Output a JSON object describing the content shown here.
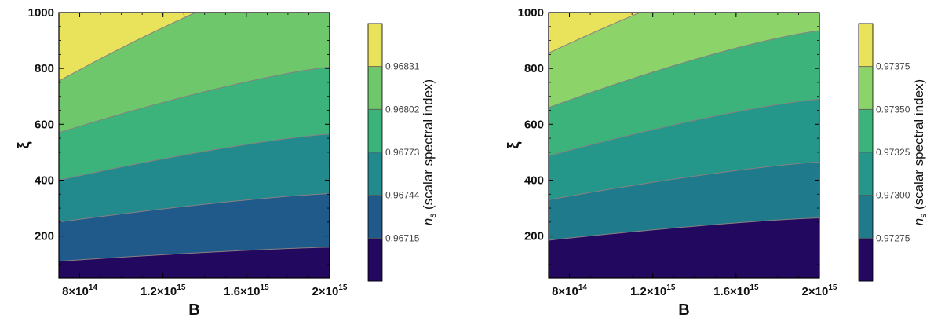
{
  "chart_data": [
    {
      "type": "contour",
      "xlabel": "B",
      "ylabel": "ξ",
      "x_ticks": [
        {
          "value": 800000000000000.0,
          "base": "8",
          "exp": "14"
        },
        {
          "value": 1200000000000000.0,
          "base": "1.2",
          "exp": "15"
        },
        {
          "value": 1600000000000000.0,
          "base": "1.6",
          "exp": "15"
        },
        {
          "value": 2000000000000000.0,
          "base": "2",
          "exp": "15"
        }
      ],
      "y_ticks": [
        "200",
        "400",
        "600",
        "800",
        "1000"
      ],
      "xlim": [
        700000000000000.0,
        2000000000000000.0
      ],
      "ylim": [
        50,
        1000
      ],
      "colorbar": {
        "title_symbol": "n",
        "title_sub": "s",
        "title_rest": " (scalar spectral index)",
        "levels": [
          "0.96715",
          "0.96744",
          "0.96773",
          "0.96802",
          "0.96831"
        ],
        "colors": [
          "#22085e",
          "#1f5a8a",
          "#22898c",
          "#3bb37b",
          "#6ec76a",
          "#e8e35a"
        ]
      },
      "contour_lines": [
        {
          "level": "0.96715",
          "y_at_xmin": 110,
          "y_at_xmax": 160
        },
        {
          "level": "0.96744",
          "y_at_xmin": 250,
          "y_at_xmax": 352
        },
        {
          "level": "0.96773",
          "y_at_xmin": 400,
          "y_at_xmax": 565
        },
        {
          "level": "0.96802",
          "y_at_xmin": 570,
          "y_at_xmax": 805
        },
        {
          "level": "0.96831",
          "y_at_xmin": 755,
          "y_at_xmax": 1170
        }
      ]
    },
    {
      "type": "contour",
      "xlabel": "B",
      "ylabel": "ξ",
      "x_ticks": [
        {
          "value": 800000000000000.0,
          "base": "8",
          "exp": "14"
        },
        {
          "value": 1200000000000000.0,
          "base": "1.2",
          "exp": "15"
        },
        {
          "value": 1600000000000000.0,
          "base": "1.6",
          "exp": "15"
        },
        {
          "value": 2000000000000000.0,
          "base": "2",
          "exp": "15"
        }
      ],
      "y_ticks": [
        "200",
        "400",
        "600",
        "800",
        "1000"
      ],
      "xlim": [
        700000000000000.0,
        2000000000000000.0
      ],
      "ylim": [
        50,
        1000
      ],
      "colorbar": {
        "title_symbol": "n",
        "title_sub": "s",
        "title_rest": " (scalar spectral index)",
        "levels": [
          "0.97275",
          "0.97300",
          "0.97325",
          "0.97350",
          "0.97375"
        ],
        "colors": [
          "#22085e",
          "#1f7a8c",
          "#25968a",
          "#3bb37b",
          "#8cd46a",
          "#e8e35a"
        ]
      },
      "contour_lines": [
        {
          "level": "0.97275",
          "y_at_xmin": 185,
          "y_at_xmax": 265
        },
        {
          "level": "0.97300",
          "y_at_xmin": 330,
          "y_at_xmax": 465
        },
        {
          "level": "0.97325",
          "y_at_xmin": 487,
          "y_at_xmax": 690
        },
        {
          "level": "0.97350",
          "y_at_xmin": 660,
          "y_at_xmax": 935
        },
        {
          "level": "0.97375",
          "y_at_xmin": 855,
          "y_at_xmax": 1210
        }
      ]
    }
  ]
}
